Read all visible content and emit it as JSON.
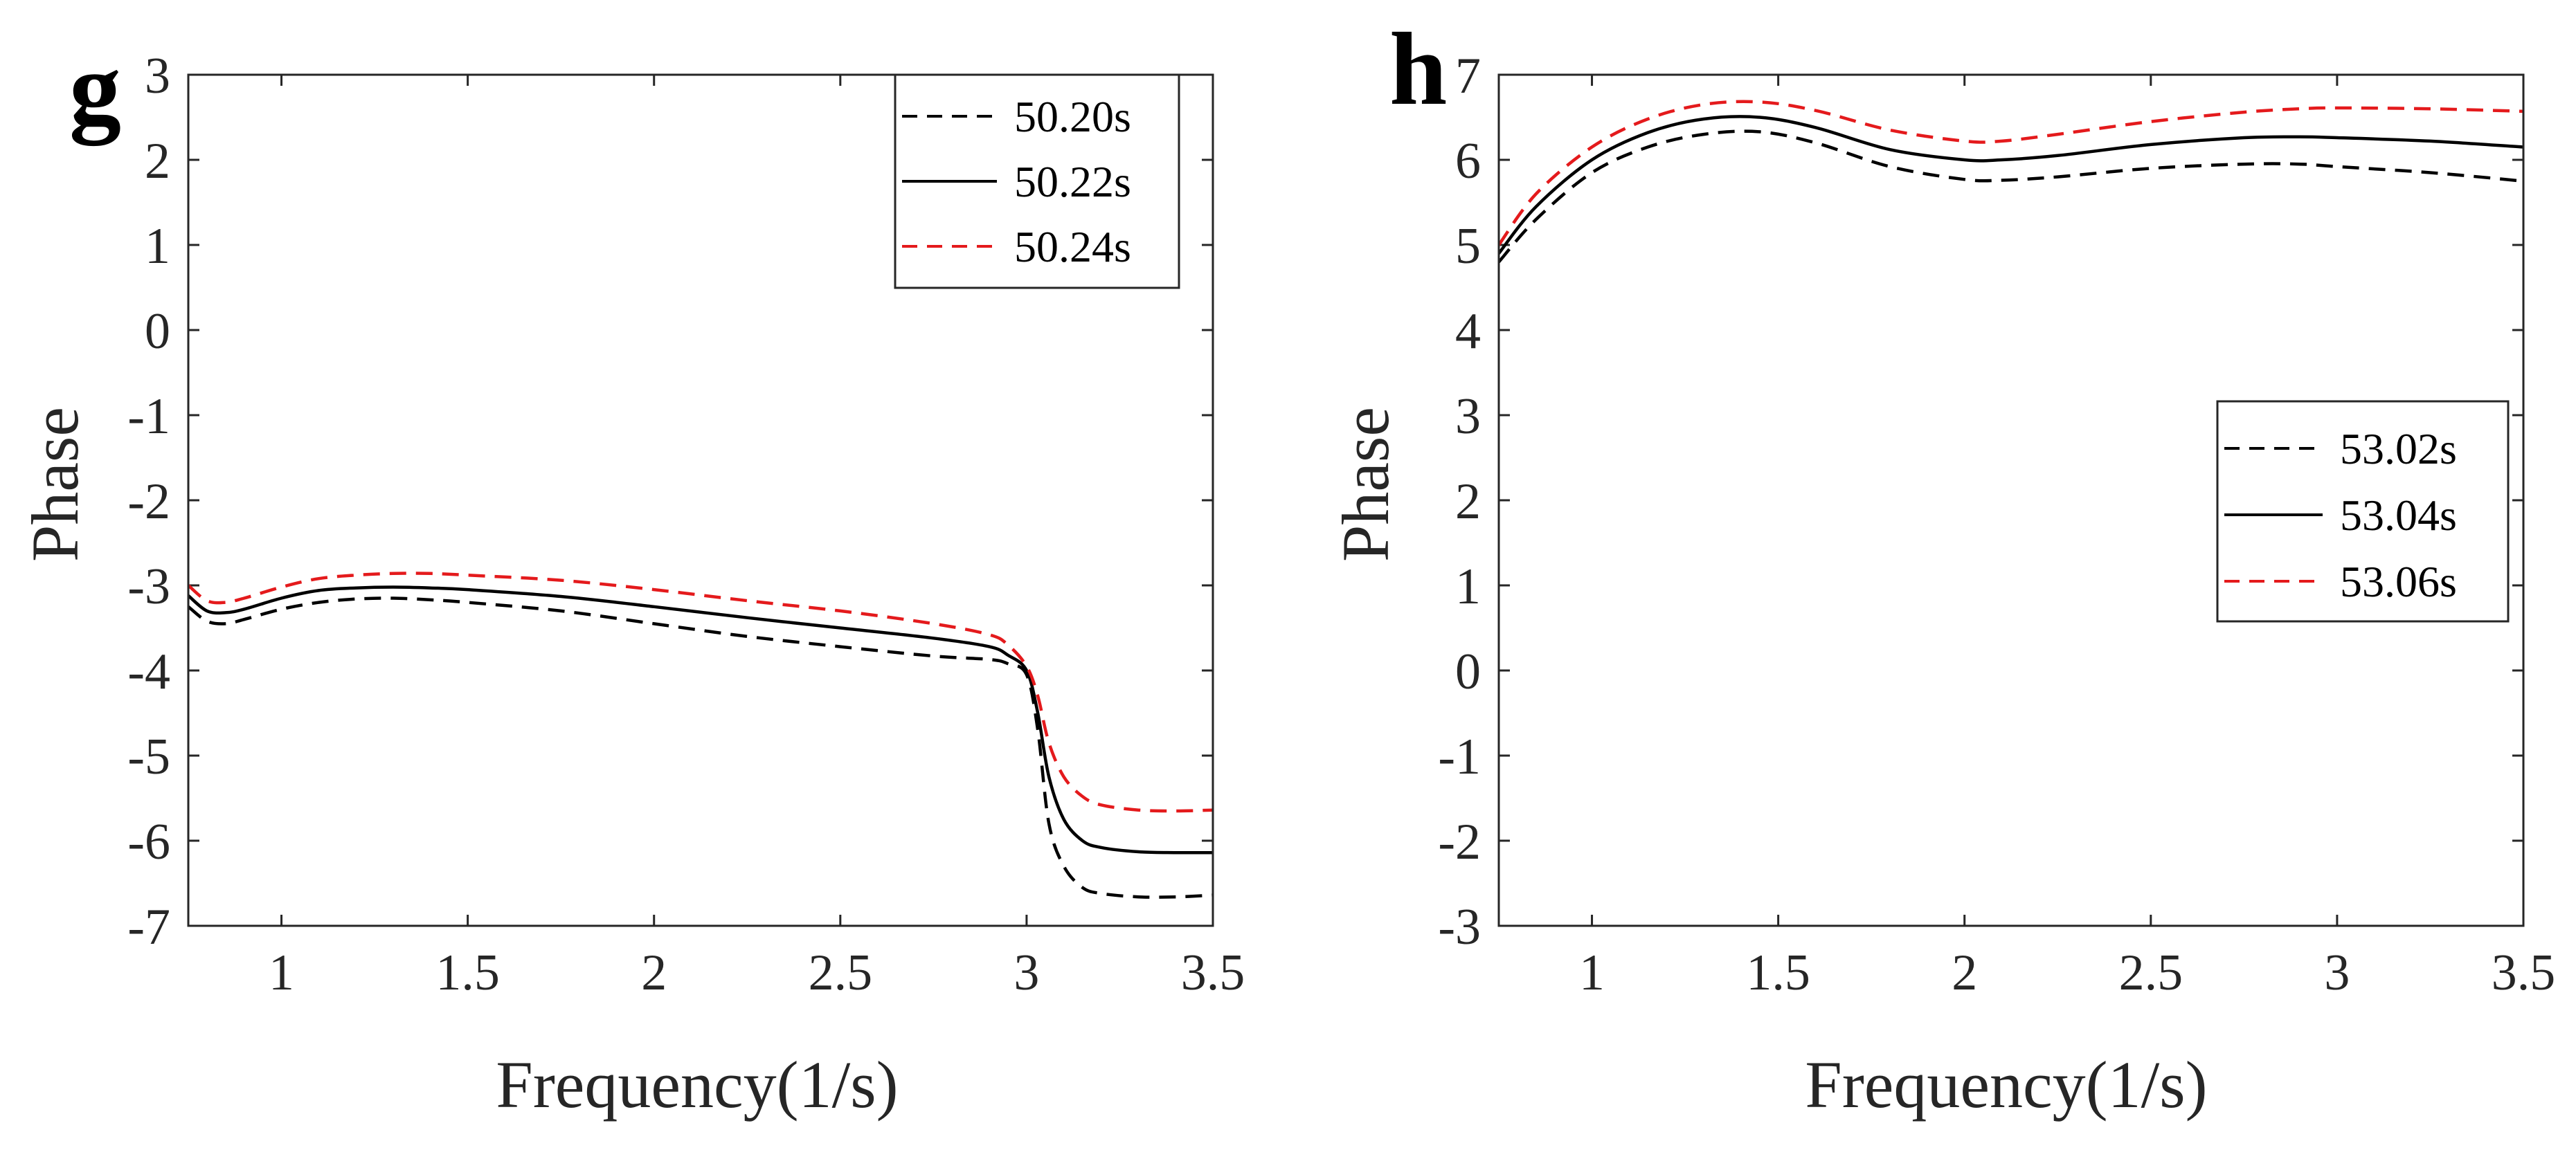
{
  "colors": {
    "black": "#000000",
    "red": "#e41a1c",
    "axis": "#262626"
  },
  "chart_data": [
    {
      "type": "line",
      "panel_label": "g",
      "xlabel": "Frequency(1/s)",
      "ylabel": "Phase",
      "xlim": [
        0.75,
        3.5
      ],
      "ylim": [
        -7,
        3
      ],
      "xticks": [
        1,
        1.5,
        2,
        2.5,
        3,
        3.5
      ],
      "xtick_labels": [
        "1",
        "1.5",
        "2",
        "2.5",
        "3",
        "3.5"
      ],
      "yticks": [
        -7,
        -6,
        -5,
        -4,
        -3,
        -2,
        -1,
        0,
        1,
        2,
        3
      ],
      "ytick_labels": [
        "-7",
        "-6",
        "-5",
        "-4",
        "-3",
        "-2",
        "-1",
        "0",
        "1",
        "2",
        "3"
      ],
      "legend_position": "top-right",
      "series": [
        {
          "name": "50.20s",
          "color": "#000000",
          "style": "dashed",
          "x": [
            0.75,
            0.8,
            0.85,
            0.9,
            1.0,
            1.1,
            1.2,
            1.3,
            1.4,
            1.5,
            1.75,
            2.0,
            2.25,
            2.5,
            2.75,
            2.9,
            2.95,
            3.0,
            3.03,
            3.06,
            3.1,
            3.15,
            3.2,
            3.3,
            3.4,
            3.5
          ],
          "values": [
            -3.25,
            -3.42,
            -3.45,
            -3.4,
            -3.28,
            -3.2,
            -3.16,
            -3.15,
            -3.17,
            -3.2,
            -3.3,
            -3.45,
            -3.6,
            -3.72,
            -3.83,
            -3.87,
            -3.92,
            -4.05,
            -4.7,
            -5.8,
            -6.3,
            -6.55,
            -6.62,
            -6.66,
            -6.66,
            -6.64
          ]
        },
        {
          "name": "50.22s",
          "color": "#000000",
          "style": "solid",
          "x": [
            0.75,
            0.8,
            0.85,
            0.9,
            1.0,
            1.1,
            1.2,
            1.3,
            1.4,
            1.5,
            1.75,
            2.0,
            2.25,
            2.5,
            2.75,
            2.9,
            2.95,
            3.0,
            3.03,
            3.06,
            3.1,
            3.15,
            3.2,
            3.3,
            3.4,
            3.5
          ],
          "values": [
            -3.12,
            -3.3,
            -3.32,
            -3.28,
            -3.15,
            -3.06,
            -3.03,
            -3.02,
            -3.03,
            -3.05,
            -3.13,
            -3.25,
            -3.38,
            -3.5,
            -3.62,
            -3.72,
            -3.82,
            -4.0,
            -4.5,
            -5.25,
            -5.75,
            -6.0,
            -6.08,
            -6.13,
            -6.14,
            -6.14
          ]
        },
        {
          "name": "50.24s",
          "color": "#e41a1c",
          "style": "dashed",
          "x": [
            0.75,
            0.8,
            0.85,
            0.9,
            1.0,
            1.1,
            1.2,
            1.3,
            1.4,
            1.5,
            1.75,
            2.0,
            2.25,
            2.5,
            2.75,
            2.9,
            2.95,
            3.0,
            3.03,
            3.06,
            3.1,
            3.15,
            3.2,
            3.3,
            3.4,
            3.5
          ],
          "values": [
            -3.0,
            -3.18,
            -3.2,
            -3.15,
            -3.02,
            -2.92,
            -2.88,
            -2.86,
            -2.86,
            -2.88,
            -2.94,
            -3.05,
            -3.18,
            -3.3,
            -3.45,
            -3.58,
            -3.7,
            -3.95,
            -4.3,
            -4.85,
            -5.25,
            -5.48,
            -5.58,
            -5.64,
            -5.65,
            -5.64
          ]
        }
      ]
    },
    {
      "type": "line",
      "panel_label": "h",
      "xlabel": "Frequency(1/s)",
      "ylabel": "Phase",
      "xlim": [
        0.75,
        3.5
      ],
      "ylim": [
        -3,
        7
      ],
      "xticks": [
        1,
        1.5,
        2,
        2.5,
        3,
        3.5
      ],
      "xtick_labels": [
        "1",
        "1.5",
        "2",
        "2.5",
        "3",
        "3.5"
      ],
      "yticks": [
        -3,
        -2,
        -1,
        0,
        1,
        2,
        3,
        4,
        5,
        6,
        7
      ],
      "ytick_labels": [
        "-3",
        "-2",
        "-1",
        "0",
        "1",
        "2",
        "3",
        "4",
        "5",
        "6",
        "7"
      ],
      "legend_position": "center-right",
      "series": [
        {
          "name": "53.02s",
          "color": "#000000",
          "style": "dashed",
          "x": [
            0.75,
            0.85,
            1.0,
            1.15,
            1.3,
            1.45,
            1.6,
            1.8,
            2.0,
            2.1,
            2.25,
            2.5,
            2.75,
            2.9,
            3.0,
            3.25,
            3.5
          ],
          "values": [
            4.8,
            5.3,
            5.85,
            6.15,
            6.3,
            6.33,
            6.2,
            5.92,
            5.77,
            5.76,
            5.8,
            5.9,
            5.95,
            5.95,
            5.92,
            5.85,
            5.75
          ]
        },
        {
          "name": "53.04s",
          "color": "#000000",
          "style": "solid",
          "x": [
            0.75,
            0.85,
            1.0,
            1.15,
            1.3,
            1.45,
            1.6,
            1.8,
            2.0,
            2.1,
            2.25,
            2.5,
            2.75,
            2.9,
            3.0,
            3.25,
            3.5
          ],
          "values": [
            4.9,
            5.45,
            6.0,
            6.32,
            6.48,
            6.5,
            6.38,
            6.12,
            6.0,
            6.0,
            6.05,
            6.18,
            6.26,
            6.27,
            6.26,
            6.22,
            6.15
          ]
        },
        {
          "name": "53.06s",
          "color": "#e41a1c",
          "style": "dashed",
          "x": [
            0.75,
            0.85,
            1.0,
            1.15,
            1.3,
            1.45,
            1.6,
            1.8,
            2.0,
            2.1,
            2.25,
            2.5,
            2.75,
            2.9,
            3.0,
            3.25,
            3.5
          ],
          "values": [
            5.0,
            5.6,
            6.15,
            6.48,
            6.65,
            6.68,
            6.58,
            6.35,
            6.22,
            6.22,
            6.3,
            6.45,
            6.56,
            6.6,
            6.61,
            6.6,
            6.57
          ]
        }
      ]
    }
  ]
}
